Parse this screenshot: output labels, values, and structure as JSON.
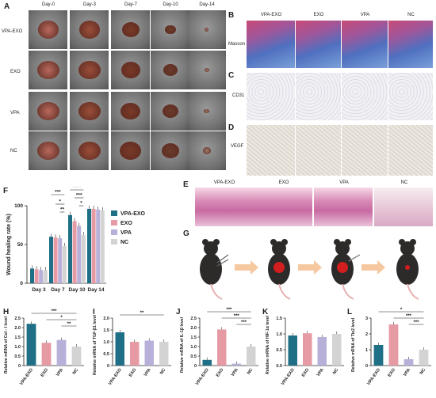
{
  "panels": {
    "A": "A",
    "B": "B",
    "C": "C",
    "D": "D",
    "E": "E",
    "F": "F",
    "G": "G",
    "H": "H",
    "I": "I",
    "J": "J",
    "K": "K",
    "L": "L"
  },
  "panelA": {
    "days": [
      "Day-0",
      "Day-3",
      "Day-7",
      "Day-10",
      "Day-14"
    ],
    "groups": [
      "VPA-EXO",
      "EXO",
      "VPA",
      "NC"
    ]
  },
  "panelBCD": {
    "columns": [
      "VPA-EXO",
      "EXO",
      "VPA",
      "NC"
    ],
    "rows": [
      "Masson",
      "CD31",
      "VEGF"
    ]
  },
  "panelE": {
    "columns": [
      "VPA-EXO",
      "EXO",
      "VPA",
      "NC"
    ]
  },
  "colors": {
    "VPA-EXO": "#1f6f86",
    "EXO": "#e59aa4",
    "VPA": "#b7b0d8",
    "NC": "#d3d3d3"
  },
  "chart_data": [
    {
      "id": "F",
      "type": "bar",
      "ylabel": "Wound healing rate (%)",
      "categories": [
        "Day 3",
        "Day 7",
        "Day 10",
        "Day 14"
      ],
      "yticks": [
        "0",
        "50",
        "100"
      ],
      "ylim": [
        0,
        100
      ],
      "series": [
        {
          "name": "VPA-EXO",
          "values": [
            19,
            60,
            88,
            96
          ]
        },
        {
          "name": "EXO",
          "values": [
            18,
            59,
            80,
            96
          ]
        },
        {
          "name": "VPA",
          "values": [
            17,
            58,
            74,
            95
          ]
        },
        {
          "name": "NC",
          "values": [
            17,
            48,
            62,
            94
          ]
        }
      ],
      "significance": [
        "***",
        "*",
        "**",
        "****",
        "***",
        "*"
      ]
    },
    {
      "id": "H",
      "type": "bar",
      "ylabel": "Relative mRNA of Col - I level",
      "categories": [
        "VPA-EXO",
        "EXO",
        "VPA",
        "NC"
      ],
      "values": [
        2.2,
        1.2,
        1.35,
        1.0
      ],
      "ylim": [
        0,
        2.5
      ],
      "yticks": [
        "0",
        "0.5",
        "1.0",
        "1.5",
        "2.0",
        "2.5"
      ],
      "significance": [
        "***",
        "*",
        "**"
      ]
    },
    {
      "id": "I",
      "type": "bar",
      "ylabel": "Relative mRNA of TGF-β1 level",
      "categories": [
        "VPA-EXO",
        "EXO",
        "VPA",
        "NC"
      ],
      "values": [
        1.4,
        1.0,
        1.05,
        1.0
      ],
      "ylim": [
        0,
        2.0
      ],
      "yticks": [
        "0",
        "0.5",
        "1.0",
        "1.5",
        "2.0"
      ],
      "significance": [
        "**"
      ]
    },
    {
      "id": "J",
      "type": "bar",
      "ylabel": "Relative mRNA of IL-1β level",
      "categories": [
        "VPA-EXO",
        "EXO",
        "VPA",
        "NC"
      ],
      "values": [
        0.3,
        1.9,
        0.1,
        1.0
      ],
      "ylim": [
        0,
        2.5
      ],
      "yticks": [
        "0",
        "0.5",
        "1.0",
        "1.5",
        "2.0",
        "2.5"
      ],
      "significance": [
        "***",
        "***",
        "***"
      ]
    },
    {
      "id": "K",
      "type": "bar",
      "ylabel": "Relative mRNA of HIF-1α level",
      "categories": [
        "VPA-EXO",
        "EXO",
        "VPA",
        "NC"
      ],
      "values": [
        0.95,
        1.02,
        0.9,
        1.0
      ],
      "ylim": [
        0,
        1.5
      ],
      "yticks": [
        "0.0",
        "0.5",
        "1.0",
        "1.5"
      ],
      "significance": []
    },
    {
      "id": "L",
      "type": "bar",
      "ylabel": "Relative mRNA of Tie2 level",
      "categories": [
        "VPA-EXO",
        "EXO",
        "VPA",
        "NC"
      ],
      "values": [
        1.3,
        2.6,
        0.4,
        1.0
      ],
      "ylim": [
        0,
        3
      ],
      "yticks": [
        "0",
        "1",
        "2",
        "3"
      ],
      "significance": [
        "*",
        "***",
        "***"
      ]
    }
  ]
}
